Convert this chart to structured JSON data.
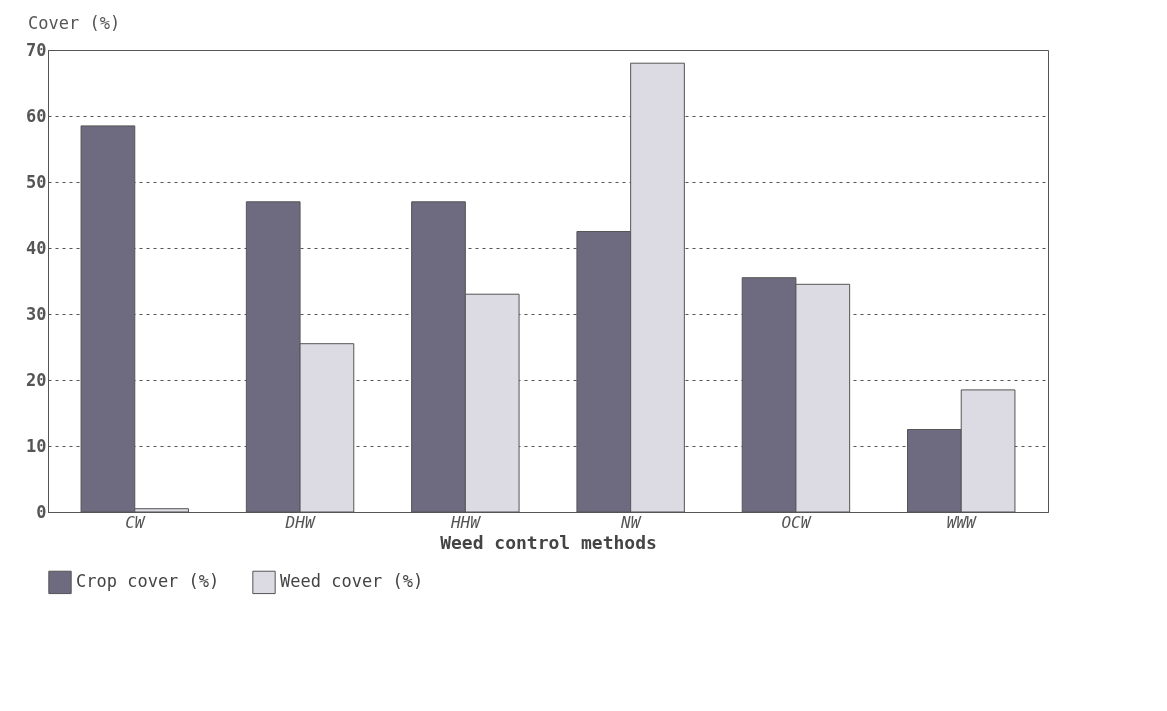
{
  "chart_data": {
    "type": "bar",
    "ylabel": "Cover (%)",
    "xlabel": "Weed control methods",
    "categories": [
      "CW",
      "DHW",
      "HHW",
      "NW",
      "OCW",
      "WWW"
    ],
    "series": [
      {
        "name": "Crop cover (%)",
        "color": "#6e6a80",
        "values": [
          58.5,
          47,
          47,
          42.5,
          35.5,
          12.5
        ]
      },
      {
        "name": "Weed cover (%)",
        "color": "#dcdae2",
        "values": [
          0.5,
          25.5,
          33,
          68,
          34.5,
          18.5
        ]
      }
    ],
    "ylim": [
      0,
      70
    ],
    "yticks": [
      0,
      10,
      20,
      30,
      40,
      50,
      60,
      70
    ],
    "grid": "y",
    "legend": "bottom"
  }
}
